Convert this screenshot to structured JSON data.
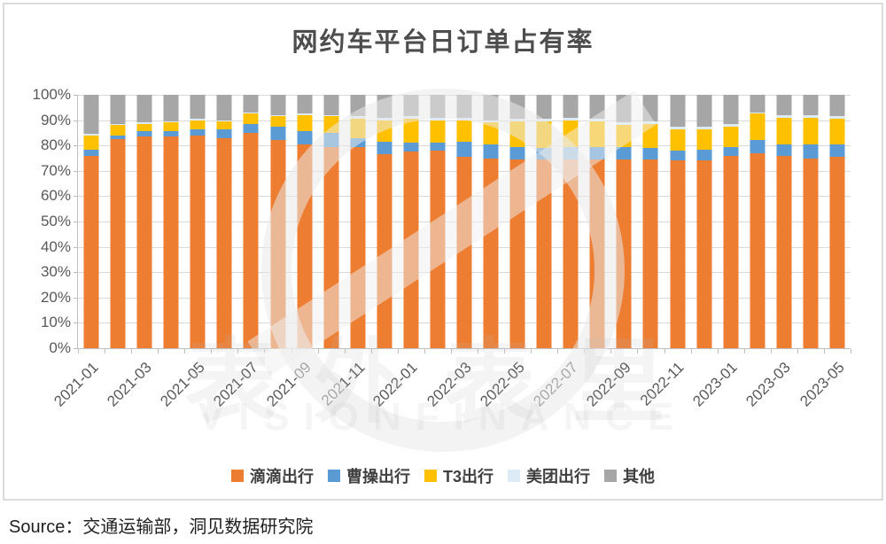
{
  "title": "网约车平台日订单占有率",
  "source": "Source：交通运输部，洞见数据研究院",
  "watermark": {
    "line1": "表外表里",
    "line2": "VISIONFINANCE"
  },
  "chart_data": {
    "type": "bar",
    "subtype": "stacked-percent",
    "title": "网约车平台日订单占有率",
    "xlabel": "",
    "ylabel": "",
    "ylim": [
      0,
      100
    ],
    "y_ticks": [
      "0%",
      "10%",
      "20%",
      "30%",
      "40%",
      "50%",
      "60%",
      "70%",
      "80%",
      "90%",
      "100%"
    ],
    "grid": true,
    "legend_position": "bottom",
    "x_label_every": 2,
    "categories": [
      "2021-01",
      "2021-02",
      "2021-03",
      "2021-04",
      "2021-05",
      "2021-06",
      "2021-07",
      "2021-08",
      "2021-09",
      "2021-10",
      "2021-11",
      "2021-12",
      "2022-01",
      "2022-02",
      "2022-03",
      "2022-04",
      "2022-05",
      "2022-06",
      "2022-07",
      "2022-08",
      "2022-09",
      "2022-10",
      "2022-11",
      "2022-12",
      "2023-01",
      "2023-02",
      "2023-03",
      "2023-04",
      "2023-05"
    ],
    "series": [
      {
        "key": "didi",
        "name": "滴滴出行",
        "color": "#ED7D31",
        "values": [
          76,
          82.5,
          83.5,
          83.5,
          84,
          83,
          85,
          82,
          80.5,
          79.5,
          79.5,
          76.5,
          77.5,
          78,
          75.5,
          75,
          74.5,
          74.5,
          74.5,
          74.5,
          74.5,
          74.5,
          74,
          74,
          76,
          77,
          76,
          75,
          75.5
        ]
      },
      {
        "key": "caocao",
        "name": "曹操出行",
        "color": "#5B9BD5",
        "values": [
          2.5,
          1.5,
          2,
          2,
          2.5,
          3.5,
          3.5,
          5.5,
          5,
          5.5,
          3.5,
          5,
          3.5,
          3,
          6,
          5.5,
          5,
          4.5,
          5,
          5,
          5,
          4.5,
          4,
          4.5,
          3.5,
          5,
          4.5,
          5.5,
          5
        ]
      },
      {
        "key": "t3",
        "name": "T3出行",
        "color": "#FFC000",
        "values": [
          5.5,
          4,
          3,
          3.5,
          3.5,
          3,
          4,
          4,
          6.5,
          6.5,
          7.5,
          8.5,
          9.5,
          9,
          8.5,
          8.5,
          10,
          10.5,
          10.5,
          10,
          8.5,
          9.5,
          8.5,
          8,
          8,
          10.5,
          10.5,
          10.5,
          10
        ]
      },
      {
        "key": "meituan",
        "name": "美团出行",
        "color": "#DDEBF7",
        "values": [
          0.5,
          0.5,
          0.5,
          0.5,
          0.5,
          0.5,
          0.5,
          0.5,
          0.5,
          0.5,
          1,
          1,
          1,
          1,
          1,
          1,
          1,
          1,
          1,
          1,
          1,
          1,
          1,
          1,
          1,
          0.5,
          1,
          1,
          1
        ]
      },
      {
        "key": "others",
        "name": "其他",
        "color": "#A6A6A6",
        "values": [
          15.5,
          11.5,
          11,
          10.5,
          9.5,
          10,
          7,
          8,
          7.5,
          8,
          8.5,
          9,
          8.5,
          9,
          9,
          10,
          9.5,
          9.5,
          9,
          9.5,
          11,
          10.5,
          12.5,
          12.5,
          11.5,
          7,
          8,
          8,
          8.5
        ]
      }
    ]
  }
}
